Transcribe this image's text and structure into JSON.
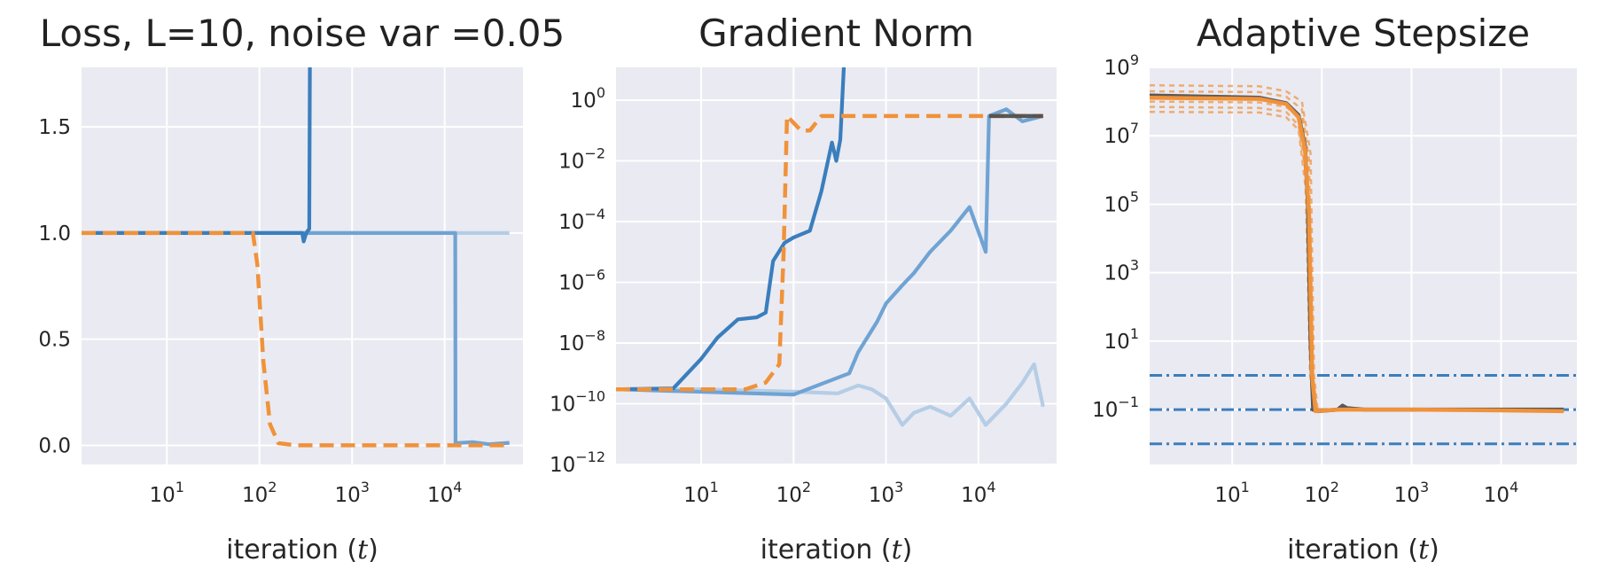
{
  "colors": {
    "blue_dark": "#3a7ebd",
    "blue_mid": "#6fa3d3",
    "blue_light": "#b5cde6",
    "orange": "#f0923a",
    "dark": "#505050",
    "background": "#eaeaf2",
    "grid": "#ffffff"
  },
  "chart_data": [
    {
      "type": "line",
      "title": "Loss, L=10, noise var =0.05",
      "xlabel": "iteration (t)",
      "xscale": "log",
      "xlim": [
        1.2,
        70000
      ],
      "ylim": [
        -0.09,
        1.78
      ],
      "grid": true,
      "xticks": [
        {
          "value": 10,
          "base": "10",
          "exp": "1"
        },
        {
          "value": 100,
          "base": "10",
          "exp": "2"
        },
        {
          "value": 1000,
          "base": "10",
          "exp": "3"
        },
        {
          "value": 10000,
          "base": "10",
          "exp": "4"
        }
      ],
      "yticks": [
        {
          "value": 0,
          "label": "0.0"
        },
        {
          "value": 0.5,
          "label": "0.5"
        },
        {
          "value": 1.0,
          "label": "1.0"
        },
        {
          "value": 1.5,
          "label": "1.5"
        }
      ],
      "series": [
        {
          "style": "blue_light",
          "dash": "solid",
          "points": [
            [
              1.2,
              1.0
            ],
            [
              50000,
              1.0
            ]
          ]
        },
        {
          "style": "blue_mid",
          "dash": "solid",
          "points": [
            [
              1.2,
              1.0
            ],
            [
              13000,
              1.0
            ],
            [
              13100,
              0.01
            ],
            [
              20000,
              0.015
            ],
            [
              30000,
              0.005
            ],
            [
              50000,
              0.012
            ]
          ]
        },
        {
          "style": "blue_dark",
          "dash": "solid",
          "points": [
            [
              1.2,
              1.0
            ],
            [
              290,
              1.0
            ],
            [
              300,
              0.96
            ],
            [
              320,
              1.0
            ],
            [
              345,
              1.02
            ],
            [
              350,
              1.78
            ]
          ]
        },
        {
          "style": "orange",
          "dash": "dashed",
          "points": [
            [
              1.2,
              1.0
            ],
            [
              85,
              1.0
            ],
            [
              95,
              0.85
            ],
            [
              110,
              0.4
            ],
            [
              130,
              0.1
            ],
            [
              160,
              0.01
            ],
            [
              250,
              0.0
            ],
            [
              1000,
              0.0
            ],
            [
              10000,
              0.0
            ],
            [
              50000,
              0.0
            ]
          ]
        }
      ]
    },
    {
      "type": "line",
      "title": "Gradient Norm",
      "xlabel": "iteration (t)",
      "xscale": "log",
      "yscale": "log",
      "xlim": [
        1.2,
        70000
      ],
      "ylim": [
        1e-12,
        12
      ],
      "grid": true,
      "xticks": [
        {
          "value": 10,
          "base": "10",
          "exp": "1"
        },
        {
          "value": 100,
          "base": "10",
          "exp": "2"
        },
        {
          "value": 1000,
          "base": "10",
          "exp": "3"
        },
        {
          "value": 10000,
          "base": "10",
          "exp": "4"
        }
      ],
      "yticks": [
        {
          "value": 1e-12,
          "base": "10",
          "exp": "−12"
        },
        {
          "value": 1e-10,
          "base": "10",
          "exp": "−10"
        },
        {
          "value": 1e-08,
          "base": "10",
          "exp": "−8"
        },
        {
          "value": 1e-06,
          "base": "10",
          "exp": "−6"
        },
        {
          "value": 0.0001,
          "base": "10",
          "exp": "−4"
        },
        {
          "value": 0.01,
          "base": "10",
          "exp": "−2"
        },
        {
          "value": 1,
          "base": "10",
          "exp": "0"
        }
      ],
      "series": [
        {
          "style": "blue_light",
          "dash": "solid",
          "points": [
            [
              1.2,
              3e-10
            ],
            [
              10,
              3e-10
            ],
            [
              100,
              2.5e-10
            ],
            [
              300,
              2.2e-10
            ],
            [
              500,
              4e-10
            ],
            [
              700,
              3e-10
            ],
            [
              1000,
              1.5e-10
            ],
            [
              1500,
              2e-11
            ],
            [
              2000,
              5e-11
            ],
            [
              3000,
              8e-11
            ],
            [
              5000,
              4e-11
            ],
            [
              8000,
              1.5e-10
            ],
            [
              12000,
              2e-11
            ],
            [
              20000,
              1e-10
            ],
            [
              30000,
              5e-10
            ],
            [
              40000,
              2e-09
            ],
            [
              50000,
              8e-11
            ]
          ]
        },
        {
          "style": "blue_mid",
          "dash": "solid",
          "points": [
            [
              1.2,
              3e-10
            ],
            [
              100,
              2e-10
            ],
            [
              400,
              1e-09
            ],
            [
              500,
              5e-09
            ],
            [
              800,
              5e-08
            ],
            [
              1000,
              2e-07
            ],
            [
              1500,
              8e-07
            ],
            [
              2000,
              2e-06
            ],
            [
              3000,
              1e-05
            ],
            [
              5000,
              5e-05
            ],
            [
              8000,
              0.0003
            ],
            [
              12000,
              1e-05
            ],
            [
              13000,
              0.3
            ],
            [
              20000,
              0.5
            ],
            [
              30000,
              0.2
            ],
            [
              50000,
              0.3
            ]
          ]
        },
        {
          "style": "blue_dark",
          "dash": "solid",
          "points": [
            [
              1.2,
              3e-10
            ],
            [
              5,
              3.2e-10
            ],
            [
              10,
              3e-09
            ],
            [
              15,
              1.5e-08
            ],
            [
              25,
              6e-08
            ],
            [
              40,
              7e-08
            ],
            [
              50,
              1e-07
            ],
            [
              60,
              5e-06
            ],
            [
              80,
              2e-05
            ],
            [
              100,
              3e-05
            ],
            [
              150,
              5e-05
            ],
            [
              200,
              0.001
            ],
            [
              260,
              0.04
            ],
            [
              290,
              0.01
            ],
            [
              320,
              0.05
            ],
            [
              340,
              2
            ],
            [
              350,
              12
            ]
          ]
        },
        {
          "style": "orange",
          "dash": "dashed",
          "points": [
            [
              1.2,
              3e-10
            ],
            [
              30,
              3e-10
            ],
            [
              50,
              5e-10
            ],
            [
              70,
              2e-09
            ],
            [
              78,
              1e-05
            ],
            [
              85,
              0.3
            ],
            [
              120,
              0.1
            ],
            [
              150,
              0.1
            ],
            [
              200,
              0.3
            ],
            [
              1000,
              0.3
            ],
            [
              10000,
              0.3
            ],
            [
              50000,
              0.3
            ]
          ]
        },
        {
          "style": "dark",
          "dash": "solid",
          "points": [
            [
              13000,
              0.3
            ],
            [
              50000,
              0.3
            ]
          ]
        }
      ]
    },
    {
      "type": "line",
      "title": "Adaptive Stepsize",
      "xlabel": "iteration (t)",
      "xscale": "log",
      "yscale": "log",
      "xlim": [
        1.2,
        70000
      ],
      "ylim": [
        0.0025,
        1000000000.0
      ],
      "grid": true,
      "xticks": [
        {
          "value": 10,
          "base": "10",
          "exp": "1"
        },
        {
          "value": 100,
          "base": "10",
          "exp": "2"
        },
        {
          "value": 1000,
          "base": "10",
          "exp": "3"
        },
        {
          "value": 10000,
          "base": "10",
          "exp": "4"
        }
      ],
      "yticks": [
        {
          "value": 0.1,
          "base": "10",
          "exp": "−1"
        },
        {
          "value": 10,
          "base": "10",
          "exp": "1"
        },
        {
          "value": 1000,
          "base": "10",
          "exp": "3"
        },
        {
          "value": 100000,
          "base": "10",
          "exp": "5"
        },
        {
          "value": 10000000,
          "base": "10",
          "exp": "7"
        },
        {
          "value": 1000000000,
          "base": "10",
          "exp": "9"
        }
      ],
      "hlines": [
        1.0,
        0.1,
        0.01
      ],
      "series": [
        {
          "style": "orange_light",
          "dash": "dotted",
          "points": [
            [
              1.2,
              300000000.0
            ],
            [
              20,
              280000000.0
            ],
            [
              40,
              200000000.0
            ],
            [
              60,
              100000000.0
            ],
            [
              75,
              3000000.0
            ],
            [
              82,
              1
            ],
            [
              90,
              0.1
            ],
            [
              50000,
              0.1
            ]
          ]
        },
        {
          "style": "orange_light",
          "dash": "dotted",
          "points": [
            [
              1.2,
              200000000.0
            ],
            [
              20,
              190000000.0
            ],
            [
              40,
              140000000.0
            ],
            [
              60,
              60000000.0
            ],
            [
              72,
              2000000.0
            ],
            [
              80,
              1
            ],
            [
              88,
              0.1
            ],
            [
              50000,
              0.1
            ]
          ]
        },
        {
          "style": "orange_light",
          "dash": "dotted",
          "points": [
            [
              1.2,
              100000000.0
            ],
            [
              20,
              95000000.0
            ],
            [
              40,
              70000000.0
            ],
            [
              60,
              30000000.0
            ],
            [
              70,
              1000000.0
            ],
            [
              78,
              1
            ],
            [
              86,
              0.1
            ],
            [
              50000,
              0.1
            ]
          ]
        },
        {
          "style": "orange_light",
          "dash": "dotted",
          "points": [
            [
              1.2,
              70000000.0
            ],
            [
              20,
              65000000.0
            ],
            [
              40,
              50000000.0
            ],
            [
              55,
              20000000.0
            ],
            [
              68,
              500000.0
            ],
            [
              76,
              1
            ],
            [
              85,
              0.1
            ],
            [
              50000,
              0.1
            ]
          ]
        },
        {
          "style": "orange_light",
          "dash": "dotted",
          "points": [
            [
              1.2,
              50000000.0
            ],
            [
              20,
              48000000.0
            ],
            [
              40,
              35000000.0
            ],
            [
              55,
              15000000.0
            ],
            [
              66,
              300000.0
            ],
            [
              74,
              1
            ],
            [
              84,
              0.1
            ],
            [
              50000,
              0.1
            ]
          ]
        },
        {
          "style": "dark",
          "dash": "solid",
          "points": [
            [
              1.2,
              150000000.0
            ],
            [
              20,
              130000000.0
            ],
            [
              40,
              90000000.0
            ],
            [
              55,
              40000000.0
            ],
            [
              65,
              5000000.0
            ],
            [
              70,
              100000.0
            ],
            [
              75,
              10
            ],
            [
              80,
              0.1
            ],
            [
              90,
              0.09
            ],
            [
              150,
              0.1
            ],
            [
              170,
              0.13
            ],
            [
              190,
              0.11
            ],
            [
              300,
              0.1
            ],
            [
              1000,
              0.1
            ],
            [
              10000,
              0.1
            ],
            [
              50000,
              0.1
            ]
          ]
        },
        {
          "style": "orange",
          "dash": "solid",
          "points": [
            [
              1.2,
              130000000.0
            ],
            [
              20,
              120000000.0
            ],
            [
              40,
              85000000.0
            ],
            [
              55,
              35000000.0
            ],
            [
              65,
              4000000.0
            ],
            [
              72,
              50000.0
            ],
            [
              78,
              1
            ],
            [
              85,
              0.09
            ],
            [
              150,
              0.1
            ],
            [
              1000,
              0.1
            ],
            [
              10000,
              0.095
            ],
            [
              50000,
              0.09
            ]
          ]
        }
      ]
    }
  ]
}
